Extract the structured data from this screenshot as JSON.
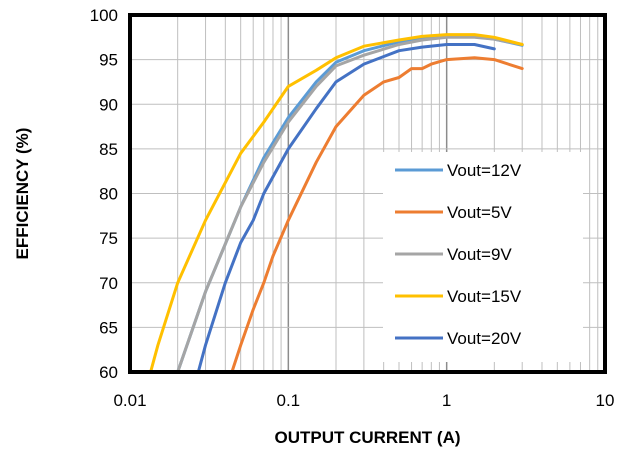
{
  "chart_data": {
    "type": "line",
    "x_scale": "log",
    "xlim": [
      0.01,
      10
    ],
    "ylim": [
      60,
      100
    ],
    "x_ticks": [
      0.01,
      0.1,
      1,
      10
    ],
    "x_tick_labels": [
      "0.01",
      "0.1",
      "1",
      "10"
    ],
    "y_ticks": [
      60,
      65,
      70,
      75,
      80,
      85,
      90,
      95,
      100
    ],
    "y_tick_labels": [
      "60",
      "65",
      "70",
      "75",
      "80",
      "85",
      "90",
      "95",
      "100"
    ],
    "xlabel": "OUTPUT  CURRENT  (A)",
    "ylabel": "EFFICIENCY  (%)",
    "grid": true,
    "legend_position": "bottom-right",
    "series": [
      {
        "name": "Vout=12V",
        "color": "#5b9bd5",
        "x": [
          0.02,
          0.03,
          0.05,
          0.07,
          0.1,
          0.15,
          0.2,
          0.3,
          0.5,
          0.7,
          1.0,
          1.5,
          2.0,
          3.0
        ],
        "y": [
          60,
          69,
          78.5,
          84,
          88.5,
          92.5,
          94.7,
          96.0,
          97.0,
          97.4,
          97.6,
          97.6,
          97.3,
          96.6
        ]
      },
      {
        "name": "Vout=5V",
        "color": "#ed7d31",
        "x": [
          0.044,
          0.05,
          0.06,
          0.07,
          0.08,
          0.1,
          0.15,
          0.2,
          0.3,
          0.4,
          0.5,
          0.6,
          0.7,
          0.8,
          1.0,
          1.5,
          2.0,
          3.0
        ],
        "y": [
          60,
          63,
          67,
          70,
          73,
          77,
          83.5,
          87.5,
          91,
          92.5,
          93,
          94,
          94,
          94.5,
          95,
          95.2,
          95,
          94
        ]
      },
      {
        "name": "Vout=9V",
        "color": "#a5a5a5",
        "x": [
          0.02,
          0.03,
          0.05,
          0.07,
          0.1,
          0.15,
          0.2,
          0.3,
          0.5,
          0.7,
          1.0,
          1.5,
          2.0,
          3.0
        ],
        "y": [
          60,
          69,
          78.5,
          83.5,
          88,
          92,
          94.3,
          95.5,
          96.7,
          97.2,
          97.5,
          97.5,
          97.3,
          96.7
        ]
      },
      {
        "name": "Vout=15V",
        "color": "#ffc000",
        "x": [
          0.0135,
          0.015,
          0.02,
          0.03,
          0.05,
          0.07,
          0.1,
          0.15,
          0.2,
          0.3,
          0.5,
          0.7,
          1.0,
          1.5,
          2.0,
          3.0
        ],
        "y": [
          60,
          63,
          70,
          77,
          84.5,
          88,
          92,
          93.8,
          95.2,
          96.5,
          97.2,
          97.6,
          97.8,
          97.8,
          97.5,
          96.7
        ]
      },
      {
        "name": "Vout=20V",
        "color": "#4472c4",
        "x": [
          0.027,
          0.03,
          0.04,
          0.05,
          0.06,
          0.07,
          0.1,
          0.15,
          0.2,
          0.3,
          0.5,
          0.7,
          1.0,
          1.5,
          2.0
        ],
        "y": [
          60,
          63,
          70,
          74.5,
          77,
          80,
          85,
          89.5,
          92.5,
          94.5,
          96,
          96.4,
          96.7,
          96.7,
          96.2
        ]
      }
    ]
  }
}
